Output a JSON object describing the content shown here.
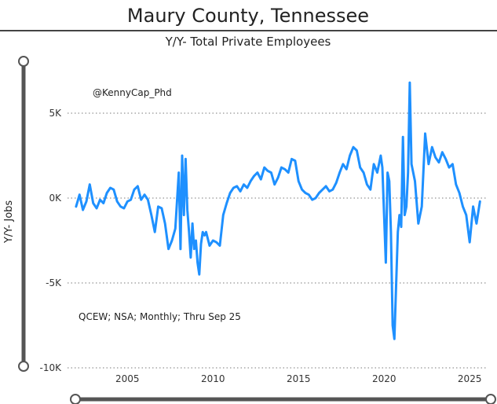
{
  "page": {
    "title": "Maury County, Tennessee"
  },
  "chart_data": {
    "type": "line",
    "title": "Y/Y- Total Private Employees",
    "xlabel": "",
    "ylabel": "Y/Y- Jobs",
    "ylim": [
      -10000,
      7500
    ],
    "xlim": [
      2001.5,
      2026.0
    ],
    "y_ticks": [
      {
        "value": 5000,
        "label": "5K"
      },
      {
        "value": 0,
        "label": "0K"
      },
      {
        "value": -5000,
        "label": "-5K"
      },
      {
        "value": -10000,
        "label": "-10K"
      }
    ],
    "x_ticks": [
      {
        "value": 2005,
        "label": "2005"
      },
      {
        "value": 2010,
        "label": "2010"
      },
      {
        "value": 2015,
        "label": "2015"
      },
      {
        "value": 2020,
        "label": "2020"
      },
      {
        "value": 2025,
        "label": "2025"
      }
    ],
    "grid": true,
    "line_color": "#1E90FF",
    "annotations": [
      "@KennyCap_Phd",
      "QCEW; NSA; Monthly; Thru Sep 25"
    ],
    "series": [
      {
        "x": [
          2002.0,
          2002.2,
          2002.4,
          2002.6,
          2002.8,
          2003.0,
          2003.2,
          2003.4,
          2003.6,
          2003.8,
          2004.0,
          2004.2,
          2004.4,
          2004.6,
          2004.8,
          2005.0,
          2005.2,
          2005.4,
          2005.6,
          2005.8,
          2006.0,
          2006.2,
          2006.4,
          2006.6,
          2006.8,
          2007.0,
          2007.2,
          2007.4,
          2007.6,
          2007.8,
          2008.0,
          2008.1,
          2008.2,
          2008.3,
          2008.4,
          2008.5,
          2008.6,
          2008.7,
          2008.8,
          2008.9,
          2009.0,
          2009.1,
          2009.2,
          2009.3,
          2009.4,
          2009.5,
          2009.6,
          2009.8,
          2010.0,
          2010.2,
          2010.4,
          2010.6,
          2010.8,
          2011.0,
          2011.2,
          2011.4,
          2011.6,
          2011.8,
          2012.0,
          2012.2,
          2012.4,
          2012.6,
          2012.8,
          2013.0,
          2013.2,
          2013.4,
          2013.6,
          2013.8,
          2014.0,
          2014.2,
          2014.4,
          2014.6,
          2014.8,
          2015.0,
          2015.2,
          2015.4,
          2015.6,
          2015.8,
          2016.0,
          2016.2,
          2016.4,
          2016.6,
          2016.8,
          2017.0,
          2017.2,
          2017.4,
          2017.6,
          2017.8,
          2018.0,
          2018.2,
          2018.4,
          2018.6,
          2018.8,
          2019.0,
          2019.2,
          2019.4,
          2019.6,
          2019.8,
          2019.9,
          2020.0,
          2020.1,
          2020.2,
          2020.3,
          2020.4,
          2020.5,
          2020.6,
          2020.8,
          2020.9,
          2021.0,
          2021.1,
          2021.2,
          2021.3,
          2021.4,
          2021.5,
          2021.6,
          2021.8,
          2022.0,
          2022.2,
          2022.4,
          2022.6,
          2022.8,
          2023.0,
          2023.2,
          2023.4,
          2023.6,
          2023.8,
          2024.0,
          2024.2,
          2024.4,
          2024.6,
          2024.8,
          2025.0,
          2025.2,
          2025.4,
          2025.6
        ],
        "y": [
          -500,
          200,
          -700,
          -200,
          800,
          -300,
          -600,
          -100,
          -300,
          300,
          600,
          500,
          -200,
          -500,
          -600,
          -200,
          -100,
          500,
          700,
          -100,
          200,
          -100,
          -1000,
          -2000,
          -500,
          -600,
          -1500,
          -3000,
          -2500,
          -1800,
          1500,
          -3000,
          2500,
          -1000,
          2300,
          -700,
          -2000,
          -3500,
          -1500,
          -3000,
          -2500,
          -3800,
          -4500,
          -2700,
          -2000,
          -2200,
          -2000,
          -2800,
          -2500,
          -2600,
          -2800,
          -1000,
          -300,
          300,
          600,
          700,
          400,
          800,
          600,
          1000,
          1300,
          1500,
          1100,
          1800,
          1600,
          1500,
          800,
          1200,
          1800,
          1700,
          1500,
          2300,
          2200,
          1000,
          500,
          300,
          200,
          -100,
          0,
          300,
          500,
          700,
          400,
          500,
          900,
          1500,
          2000,
          1700,
          2500,
          3000,
          2800,
          1800,
          1500,
          800,
          500,
          2000,
          1500,
          2500,
          1800,
          -1000,
          -3800,
          1500,
          1000,
          -2000,
          -7500,
          -8300,
          -2000,
          -1000,
          -1700,
          3600,
          -1000,
          -500,
          1500,
          6800,
          2000,
          1000,
          -1500,
          -500,
          3800,
          2000,
          3000,
          2400,
          2100,
          2700,
          2300,
          1800,
          2000,
          800,
          300,
          -500,
          -1000,
          -2600,
          -500,
          -1500,
          -200
        ]
      }
    ]
  }
}
